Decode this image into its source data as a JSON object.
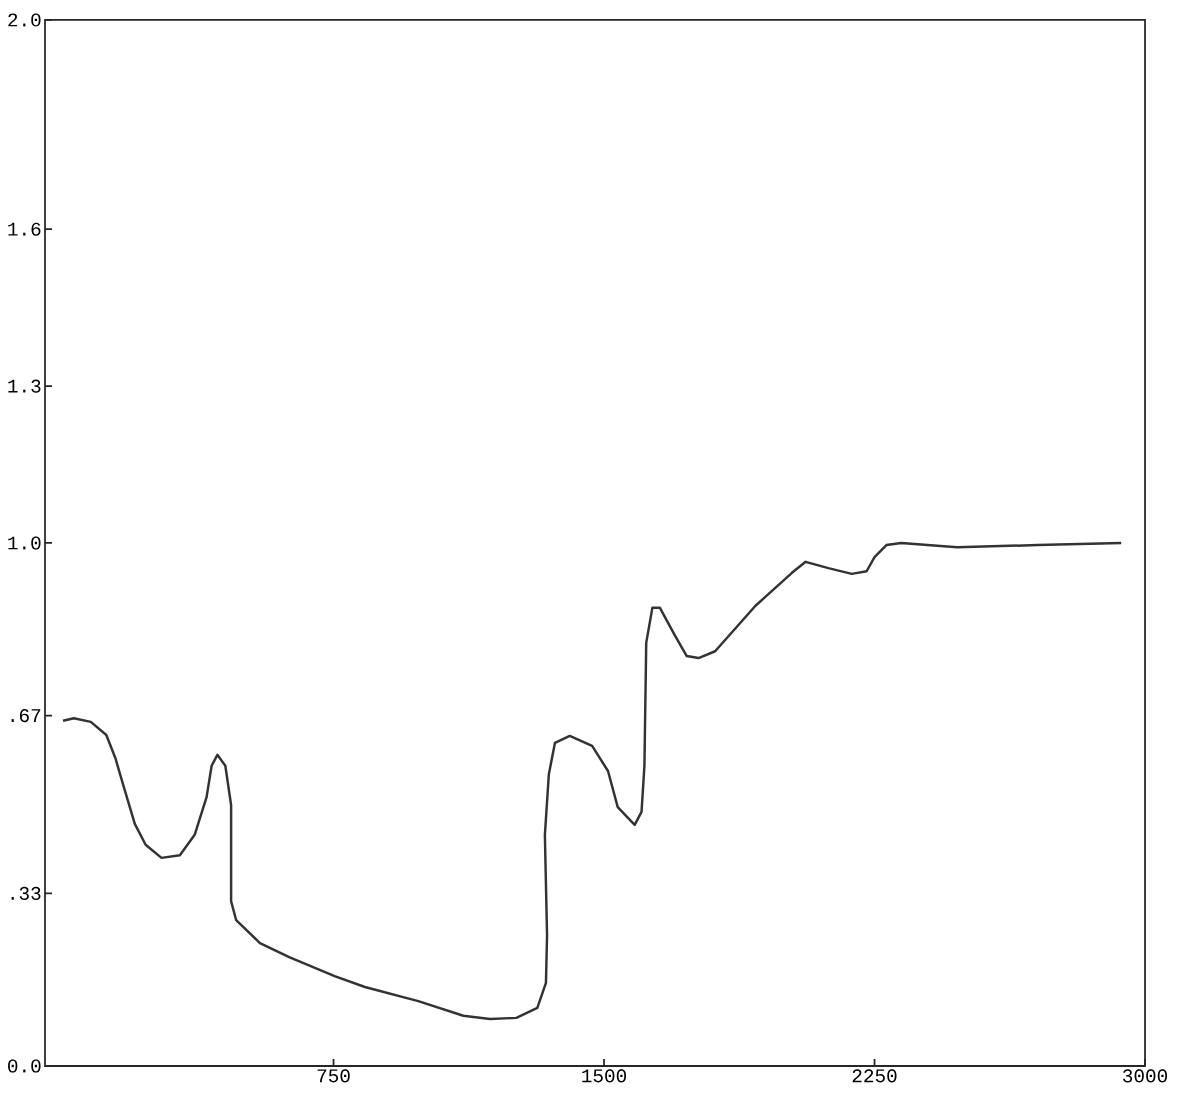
{
  "chart_data": {
    "type": "line",
    "x": [
      0,
      30,
      77,
      120,
      145,
      167,
      199,
      229,
      273,
      324,
      365,
      398,
      412,
      428,
      450,
      466,
      466,
      480,
      546,
      627,
      753,
      837,
      985,
      1110,
      1184,
      1257,
      1315,
      1339,
      1342,
      1336,
      1347,
      1364,
      1405,
      1467,
      1511,
      1538,
      1585,
      1604,
      1612,
      1617,
      1634,
      1655,
      1696,
      1729,
      1762,
      1808,
      1920,
      2021,
      2059,
      2122,
      2187,
      2228,
      2250,
      2283,
      2324,
      2479,
      2703,
      2934
    ],
    "values": [
      0.66,
      0.665,
      0.658,
      0.633,
      0.589,
      0.537,
      0.463,
      0.423,
      0.398,
      0.403,
      0.442,
      0.514,
      0.574,
      0.595,
      0.574,
      0.499,
      0.315,
      0.279,
      0.235,
      0.208,
      0.172,
      0.151,
      0.124,
      0.096,
      0.09,
      0.092,
      0.111,
      0.159,
      0.25,
      0.442,
      0.558,
      0.618,
      0.631,
      0.612,
      0.564,
      0.495,
      0.461,
      0.486,
      0.574,
      0.809,
      0.876,
      0.876,
      0.824,
      0.784,
      0.78,
      0.793,
      0.88,
      0.943,
      0.964,
      0.952,
      0.941,
      0.946,
      0.973,
      0.996,
      1.0,
      0.992,
      0.996,
      1.0
    ],
    "color": "#333333",
    "xlim": [
      -50,
      3000
    ],
    "ylim": [
      0,
      2
    ],
    "xticks": [
      750,
      1500,
      2250,
      3000
    ],
    "yticks": [
      {
        "value": 0,
        "label": "0.0"
      },
      {
        "value": 0.33,
        "label": ".33"
      },
      {
        "value": 0.67,
        "label": ".67"
      },
      {
        "value": 1.0,
        "label": "1.0"
      },
      {
        "value": 1.3,
        "label": "1.3"
      },
      {
        "value": 1.6,
        "label": "1.6"
      },
      {
        "value": 2.0,
        "label": "2.0"
      }
    ]
  }
}
